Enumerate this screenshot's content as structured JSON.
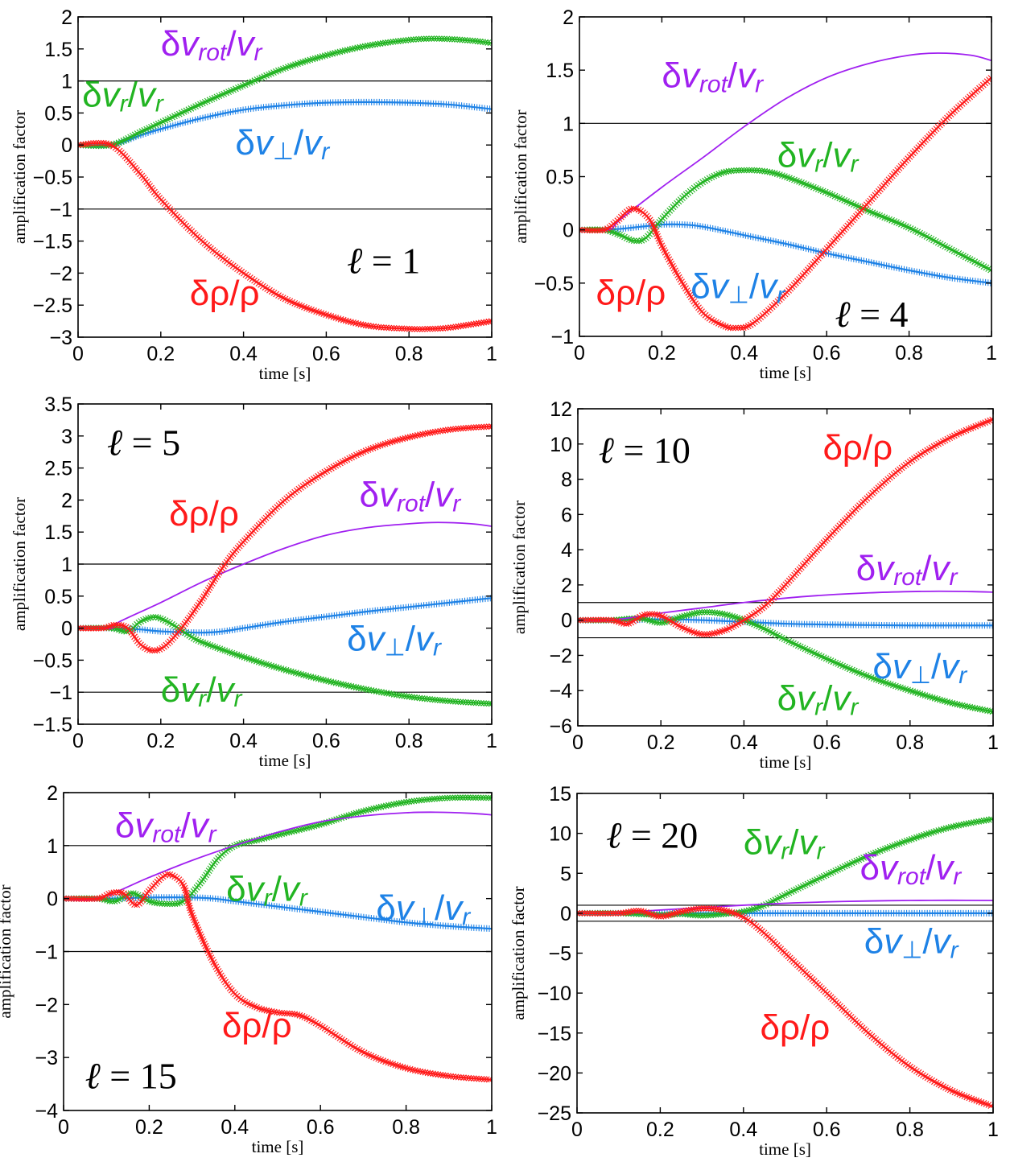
{
  "colors": {
    "rho": "#ff1a1a",
    "vr": "#22b422",
    "vperp": "#1e82e6",
    "vrot": "#a020f0",
    "ref": "#000000"
  },
  "chart_data": [
    {
      "type": "line",
      "xlabel": "time [s]",
      "ylabel": "amplification factor",
      "xlim": [
        0,
        1
      ],
      "ylim": [
        -3,
        2
      ],
      "xticks": [
        "0",
        "0.2",
        "0.4",
        "0.6",
        "0.8",
        "1"
      ],
      "yticks": [
        "−3",
        "−2.5",
        "−2",
        "−1.5",
        "−1",
        "−0.5",
        "0",
        "0.5",
        "1",
        "1.5",
        "2"
      ],
      "ref_lines": [
        1,
        -1
      ],
      "ell_label": "ℓ = 1",
      "labels": {
        "rho": "δρ/ρ",
        "vr": "δvr/vr",
        "vperp": "δv⊥/vr",
        "vrot": "δvrot/vr"
      },
      "series": [
        {
          "key": "rho",
          "x": [
            0,
            0.08,
            0.15,
            0.2,
            0.3,
            0.4,
            0.5,
            0.6,
            0.7,
            0.8,
            0.85,
            0.9,
            1.0
          ],
          "y": [
            0,
            0,
            -0.45,
            -0.85,
            -1.5,
            -2.0,
            -2.4,
            -2.65,
            -2.82,
            -2.87,
            -2.87,
            -2.85,
            -2.75
          ]
        },
        {
          "key": "vr",
          "x": [
            0,
            0.08,
            0.15,
            0.2,
            0.3,
            0.4,
            0.5,
            0.6,
            0.7,
            0.8,
            0.87,
            0.95,
            1.0
          ],
          "y": [
            0,
            0,
            0.2,
            0.35,
            0.65,
            0.93,
            1.2,
            1.4,
            1.55,
            1.64,
            1.66,
            1.63,
            1.59
          ]
        },
        {
          "key": "vperp",
          "x": [
            0,
            0.08,
            0.15,
            0.2,
            0.3,
            0.4,
            0.5,
            0.6,
            0.7,
            0.8,
            0.9,
            1.0
          ],
          "y": [
            0,
            0,
            0.15,
            0.25,
            0.42,
            0.55,
            0.62,
            0.66,
            0.67,
            0.66,
            0.63,
            0.56
          ]
        }
      ]
    },
    {
      "type": "line",
      "xlabel": "time [s]",
      "ylabel": "amplification factor",
      "xlim": [
        0,
        1
      ],
      "ylim": [
        -1,
        2
      ],
      "xticks": [
        "0",
        "0.2",
        "0.4",
        "0.6",
        "0.8",
        "1"
      ],
      "yticks": [
        "−1",
        "−0.5",
        "0",
        "0.5",
        "1",
        "1.5",
        "2"
      ],
      "ref_lines": [
        1
      ],
      "ell_label": "ℓ = 4",
      "labels": {
        "rho": "δρ/ρ",
        "vr": "δvr/vr",
        "vperp": "δv⊥/vr",
        "vrot": "δvrot/vr"
      },
      "series": [
        {
          "key": "vrot",
          "x": [
            0,
            0.07,
            0.1,
            0.2,
            0.3,
            0.4,
            0.5,
            0.6,
            0.7,
            0.8,
            0.87,
            0.95,
            1.0
          ],
          "y": [
            0,
            0,
            0.1,
            0.4,
            0.68,
            0.97,
            1.23,
            1.43,
            1.56,
            1.64,
            1.66,
            1.64,
            1.59
          ]
        },
        {
          "key": "rho",
          "x": [
            0,
            0.06,
            0.09,
            0.13,
            0.17,
            0.2,
            0.25,
            0.3,
            0.35,
            0.38,
            0.42,
            0.5,
            0.6,
            0.7,
            0.8,
            0.9,
            1.0
          ],
          "y": [
            0,
            0,
            0.08,
            0.2,
            0.1,
            -0.15,
            -0.5,
            -0.78,
            -0.9,
            -0.92,
            -0.88,
            -0.6,
            -0.18,
            0.25,
            0.68,
            1.08,
            1.43
          ]
        },
        {
          "key": "vr",
          "x": [
            0,
            0.06,
            0.1,
            0.13,
            0.16,
            0.2,
            0.25,
            0.3,
            0.35,
            0.4,
            0.45,
            0.5,
            0.6,
            0.7,
            0.8,
            0.9,
            1.0
          ],
          "y": [
            0,
            0,
            -0.05,
            -0.1,
            -0.08,
            0.1,
            0.3,
            0.45,
            0.54,
            0.56,
            0.55,
            0.5,
            0.35,
            0.18,
            0.02,
            -0.18,
            -0.38
          ]
        },
        {
          "key": "vperp",
          "x": [
            0,
            0.06,
            0.1,
            0.15,
            0.2,
            0.25,
            0.3,
            0.4,
            0.5,
            0.6,
            0.7,
            0.8,
            0.9,
            1.0
          ],
          "y": [
            0,
            0,
            0.01,
            0.03,
            0.05,
            0.05,
            0.03,
            -0.05,
            -0.13,
            -0.22,
            -0.3,
            -0.38,
            -0.45,
            -0.5
          ]
        }
      ]
    },
    {
      "type": "line",
      "xlabel": "time [s]",
      "ylabel": "amplification factor",
      "xlim": [
        0,
        1
      ],
      "ylim": [
        -1.5,
        3.5
      ],
      "xticks": [
        "0",
        "0.2",
        "0.4",
        "0.6",
        "0.8",
        "1"
      ],
      "yticks": [
        "−1.5",
        "−1",
        "−0.5",
        "0",
        "0.5",
        "1",
        "1.5",
        "2",
        "2.5",
        "3",
        "3.5"
      ],
      "ref_lines": [
        1,
        -1
      ],
      "ell_label": "ℓ = 5",
      "labels": {
        "rho": "δρ/ρ",
        "vr": "δvr/vr",
        "vperp": "δv⊥/vr",
        "vrot": "δvrot/vr"
      },
      "series": [
        {
          "key": "vrot",
          "x": [
            0,
            0.08,
            0.1,
            0.2,
            0.3,
            0.4,
            0.5,
            0.6,
            0.7,
            0.8,
            0.87,
            0.95,
            1.0
          ],
          "y": [
            0,
            0,
            0.1,
            0.4,
            0.72,
            1.0,
            1.25,
            1.45,
            1.57,
            1.63,
            1.65,
            1.63,
            1.59
          ]
        },
        {
          "key": "rho",
          "x": [
            0,
            0.06,
            0.09,
            0.12,
            0.15,
            0.18,
            0.21,
            0.25,
            0.3,
            0.35,
            0.4,
            0.5,
            0.6,
            0.7,
            0.8,
            0.9,
            1.0
          ],
          "y": [
            0,
            0,
            0.05,
            0,
            -0.25,
            -0.35,
            -0.28,
            0,
            0.45,
            0.95,
            1.35,
            2.0,
            2.45,
            2.78,
            2.98,
            3.1,
            3.15
          ]
        },
        {
          "key": "vr",
          "x": [
            0,
            0.08,
            0.12,
            0.15,
            0.18,
            0.2,
            0.23,
            0.27,
            0.3,
            0.4,
            0.5,
            0.6,
            0.7,
            0.8,
            0.9,
            1.0
          ],
          "y": [
            0,
            0,
            -0.05,
            0.1,
            0.17,
            0.15,
            0.05,
            -0.12,
            -0.22,
            -0.45,
            -0.65,
            -0.82,
            -0.96,
            -1.07,
            -1.14,
            -1.18
          ]
        },
        {
          "key": "vperp",
          "x": [
            0,
            0.08,
            0.15,
            0.2,
            0.3,
            0.35,
            0.4,
            0.5,
            0.6,
            0.7,
            0.8,
            0.9,
            1.0
          ],
          "y": [
            0,
            0,
            -0.02,
            -0.05,
            -0.07,
            -0.05,
            0.0,
            0.1,
            0.18,
            0.26,
            0.33,
            0.4,
            0.47
          ]
        }
      ]
    },
    {
      "type": "line",
      "xlabel": "time [s]",
      "ylabel": "amplification factor",
      "xlim": [
        0,
        1
      ],
      "ylim": [
        -6,
        12
      ],
      "xticks": [
        "0",
        "0.2",
        "0.4",
        "0.6",
        "0.8",
        "1"
      ],
      "yticks": [
        "−6",
        "−4",
        "−2",
        "0",
        "2",
        "4",
        "6",
        "8",
        "10",
        "12"
      ],
      "ref_lines": [
        1,
        -1
      ],
      "ell_label": "ℓ = 10",
      "labels": {
        "rho": "δρ/ρ",
        "vr": "δvr/vr",
        "vperp": "δv⊥/vr",
        "vrot": "δvrot/vr"
      },
      "series": [
        {
          "key": "vrot",
          "x": [
            0,
            0.08,
            0.2,
            0.3,
            0.4,
            0.5,
            0.6,
            0.7,
            0.8,
            0.87,
            0.95,
            1.0
          ],
          "y": [
            0,
            0,
            0.4,
            0.7,
            1.0,
            1.25,
            1.43,
            1.55,
            1.62,
            1.64,
            1.62,
            1.59
          ]
        },
        {
          "key": "rho",
          "x": [
            0,
            0.08,
            0.12,
            0.16,
            0.2,
            0.25,
            0.3,
            0.35,
            0.4,
            0.45,
            0.5,
            0.6,
            0.7,
            0.8,
            0.9,
            1.0
          ],
          "y": [
            0,
            0,
            -0.2,
            0.3,
            0.25,
            -0.4,
            -0.8,
            -0.6,
            0,
            0.8,
            2.0,
            4.6,
            7.0,
            9.0,
            10.4,
            11.4
          ]
        },
        {
          "key": "vr",
          "x": [
            0,
            0.08,
            0.15,
            0.2,
            0.25,
            0.3,
            0.35,
            0.4,
            0.45,
            0.5,
            0.6,
            0.7,
            0.8,
            0.9,
            1.0
          ],
          "y": [
            0,
            0,
            0.1,
            -0.15,
            0.2,
            0.45,
            0.35,
            0,
            -0.5,
            -1.1,
            -2.2,
            -3.2,
            -4.0,
            -4.7,
            -5.2
          ]
        },
        {
          "key": "vperp",
          "x": [
            0,
            0.1,
            0.2,
            0.3,
            0.4,
            0.5,
            0.6,
            0.7,
            0.8,
            0.9,
            1.0
          ],
          "y": [
            0,
            0,
            0.05,
            0.0,
            -0.1,
            -0.2,
            -0.25,
            -0.28,
            -0.3,
            -0.3,
            -0.3
          ]
        }
      ]
    },
    {
      "type": "line",
      "xlabel": "time [s]",
      "ylabel": "amplification factor",
      "xlim": [
        0,
        1
      ],
      "ylim": [
        -4,
        2
      ],
      "xticks": [
        "0",
        "0.2",
        "0.4",
        "0.6",
        "0.8",
        "1"
      ],
      "yticks": [
        "−4",
        "−3",
        "−2",
        "−1",
        "0",
        "1",
        "2"
      ],
      "ref_lines": [
        1,
        -1
      ],
      "ell_label": "ℓ = 15",
      "labels": {
        "rho": "δρ/ρ",
        "vr": "δvr/vr",
        "vperp": "δv⊥/vr",
        "vrot": "δvrot/vr"
      },
      "series": [
        {
          "key": "vrot",
          "x": [
            0,
            0.08,
            0.2,
            0.3,
            0.4,
            0.5,
            0.6,
            0.7,
            0.8,
            0.87,
            0.95,
            1.0
          ],
          "y": [
            0,
            0,
            0.4,
            0.72,
            1.0,
            1.25,
            1.45,
            1.56,
            1.62,
            1.63,
            1.61,
            1.58
          ]
        },
        {
          "key": "rho",
          "x": [
            0,
            0.08,
            0.11,
            0.14,
            0.17,
            0.2,
            0.23,
            0.25,
            0.28,
            0.3,
            0.35,
            0.4,
            0.45,
            0.5,
            0.55,
            0.6,
            0.7,
            0.8,
            0.9,
            1.0
          ],
          "y": [
            0,
            0,
            0.1,
            0.1,
            -0.12,
            0.15,
            0.4,
            0.45,
            0.25,
            -0.3,
            -1.2,
            -1.8,
            -2.05,
            -2.15,
            -2.2,
            -2.4,
            -2.9,
            -3.2,
            -3.35,
            -3.42
          ]
        },
        {
          "key": "vr",
          "x": [
            0,
            0.08,
            0.12,
            0.16,
            0.2,
            0.24,
            0.28,
            0.32,
            0.36,
            0.4,
            0.45,
            0.5,
            0.6,
            0.7,
            0.8,
            0.9,
            1.0
          ],
          "y": [
            0,
            0,
            -0.05,
            0.1,
            -0.05,
            -0.1,
            -0.05,
            0.3,
            0.75,
            1.0,
            1.1,
            1.2,
            1.4,
            1.65,
            1.82,
            1.9,
            1.9
          ]
        },
        {
          "key": "vperp",
          "x": [
            0,
            0.1,
            0.2,
            0.3,
            0.35,
            0.4,
            0.5,
            0.6,
            0.7,
            0.8,
            0.9,
            1.0
          ],
          "y": [
            0,
            0,
            0.02,
            0.02,
            0.0,
            -0.05,
            -0.15,
            -0.25,
            -0.35,
            -0.45,
            -0.52,
            -0.57
          ]
        }
      ]
    },
    {
      "type": "line",
      "xlabel": "time [s]",
      "ylabel": "amplification factor",
      "xlim": [
        0,
        1
      ],
      "ylim": [
        -25,
        15
      ],
      "xticks": [
        "0",
        "0.2",
        "0.4",
        "0.6",
        "0.8",
        "1"
      ],
      "yticks": [
        "−25",
        "−20",
        "−15",
        "−10",
        "−5",
        "0",
        "5",
        "10",
        "15"
      ],
      "ref_lines": [
        1,
        -1
      ],
      "ell_label": "ℓ = 20",
      "labels": {
        "rho": "δρ/ρ",
        "vr": "δvr/vr",
        "vperp": "δv⊥/vr",
        "vrot": "δvrot/vr"
      },
      "series": [
        {
          "key": "vrot",
          "x": [
            0,
            0.08,
            0.2,
            0.3,
            0.4,
            0.5,
            0.6,
            0.7,
            0.8,
            0.9,
            1.0
          ],
          "y": [
            0,
            0,
            0.4,
            0.7,
            1.0,
            1.25,
            1.42,
            1.53,
            1.6,
            1.62,
            1.6
          ]
        },
        {
          "key": "vr",
          "x": [
            0,
            0.1,
            0.2,
            0.25,
            0.3,
            0.35,
            0.4,
            0.45,
            0.5,
            0.6,
            0.7,
            0.8,
            0.9,
            1.0
          ],
          "y": [
            0,
            0,
            -0.2,
            -0.1,
            -0.3,
            -0.1,
            0.2,
            1.0,
            2.3,
            4.8,
            7.2,
            9.2,
            10.8,
            11.8
          ]
        },
        {
          "key": "vperp",
          "x": [
            0,
            0.2,
            0.4,
            0.6,
            0.8,
            1.0
          ],
          "y": [
            0,
            0,
            0.0,
            0.0,
            0.0,
            0.0
          ]
        },
        {
          "key": "rho",
          "x": [
            0,
            0.1,
            0.15,
            0.2,
            0.25,
            0.3,
            0.35,
            0.4,
            0.45,
            0.5,
            0.6,
            0.7,
            0.8,
            0.9,
            1.0
          ],
          "y": [
            0,
            0,
            0.3,
            -0.4,
            0.2,
            0.6,
            0.4,
            -0.5,
            -2.5,
            -5.0,
            -10.0,
            -15.0,
            -19.2,
            -22.2,
            -24.2
          ]
        }
      ]
    }
  ]
}
